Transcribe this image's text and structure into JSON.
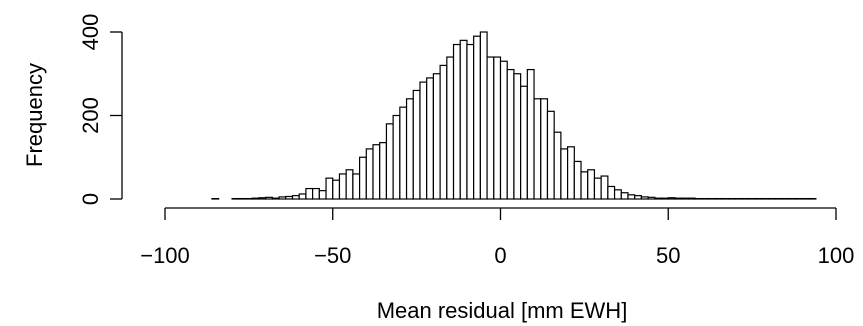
{
  "chart_data": {
    "type": "bar",
    "title": "",
    "xlabel": "Mean residual [mm EWH]",
    "ylabel": "Frequency",
    "xlim": [
      -100,
      100
    ],
    "ylim": [
      0,
      400
    ],
    "x_ticks": [
      -100,
      -50,
      0,
      50,
      100
    ],
    "x_tick_labels": [
      "−100",
      "−50",
      "0",
      "50",
      "100"
    ],
    "y_ticks": [
      0,
      200,
      400
    ],
    "y_tick_labels": [
      "0",
      "200",
      "400"
    ],
    "grid": false,
    "bin_width": 2,
    "bin_start": -86,
    "values": [
      1,
      0,
      0,
      1,
      1,
      1,
      2,
      3,
      4,
      2,
      5,
      6,
      8,
      12,
      25,
      25,
      20,
      50,
      45,
      60,
      70,
      60,
      100,
      120,
      130,
      135,
      180,
      200,
      220,
      240,
      260,
      280,
      290,
      300,
      320,
      340,
      370,
      380,
      370,
      390,
      400,
      340,
      340,
      330,
      310,
      300,
      270,
      310,
      240,
      240,
      210,
      160,
      120,
      125,
      90,
      65,
      70,
      50,
      55,
      30,
      22,
      15,
      10,
      8,
      5,
      4,
      2,
      2,
      3,
      2,
      2,
      2,
      1,
      1,
      1,
      1,
      1,
      1,
      1,
      1,
      1,
      1,
      1,
      1,
      1,
      1,
      1,
      1,
      1,
      1
    ]
  }
}
